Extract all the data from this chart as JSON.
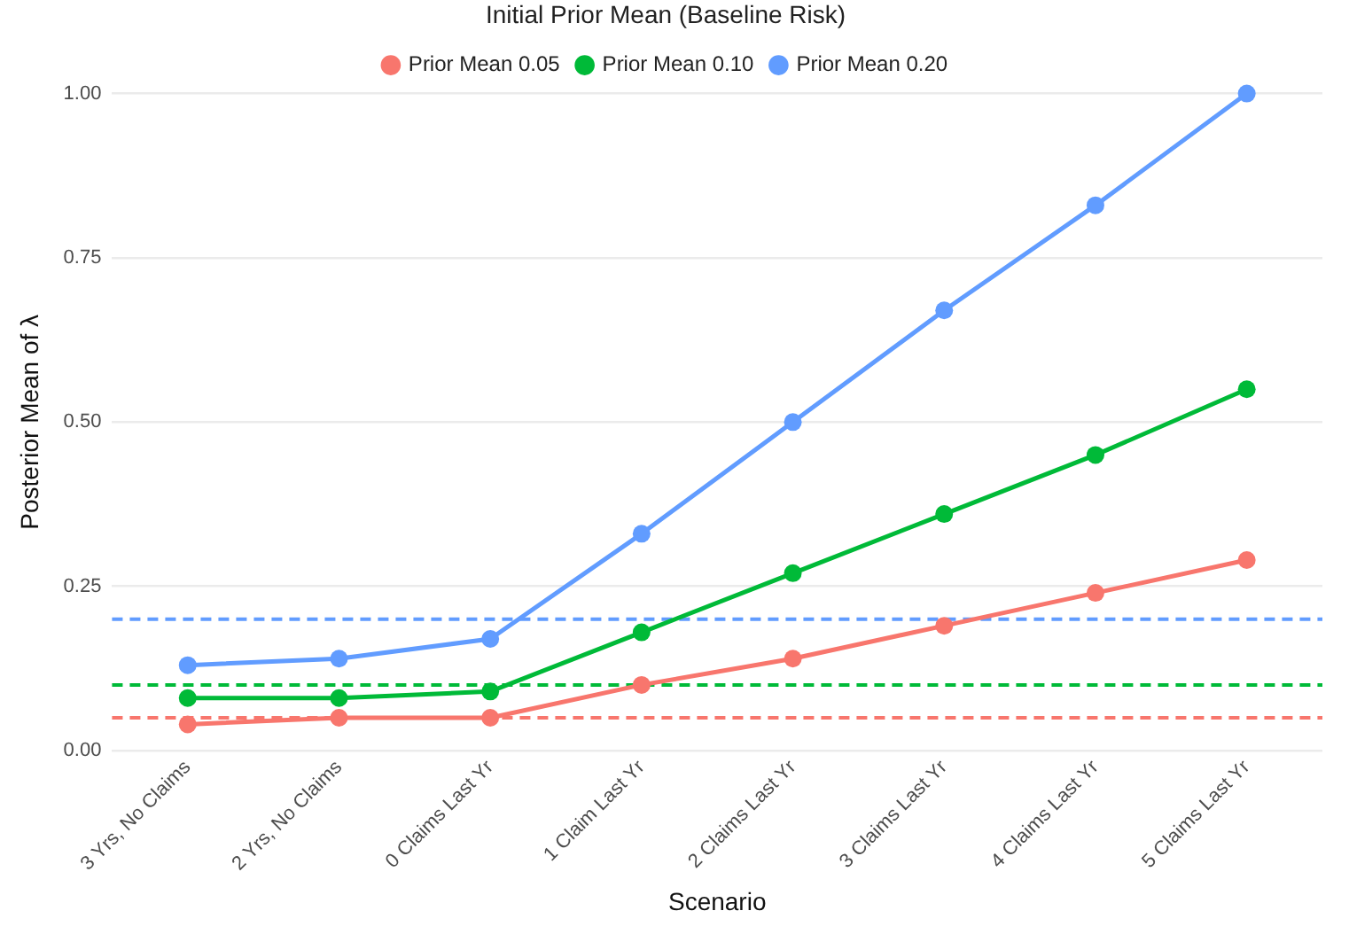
{
  "chart_data": {
    "type": "line",
    "xlabel": "Scenario",
    "ylabel": "Posterior Mean of λ",
    "legend_title": "Initial Prior Mean (Baseline Risk)",
    "categories": [
      "3 Yrs, No Claims",
      "2 Yrs, No Claims",
      "0 Claims Last Yr",
      "1 Claim Last Yr",
      "2 Claims Last Yr",
      "3 Claims Last Yr",
      "4 Claims Last Yr",
      "5 Claims Last Yr"
    ],
    "series": [
      {
        "name": "Prior Mean 0.05",
        "color": "#f8766d",
        "values": [
          0.04,
          0.05,
          0.05,
          0.1,
          0.14,
          0.19,
          0.24,
          0.29
        ]
      },
      {
        "name": "Prior Mean 0.10",
        "color": "#00ba38",
        "values": [
          0.08,
          0.08,
          0.09,
          0.18,
          0.27,
          0.36,
          0.45,
          0.55
        ]
      },
      {
        "name": "Prior Mean 0.20",
        "color": "#619cff",
        "values": [
          0.13,
          0.14,
          0.17,
          0.33,
          0.5,
          0.67,
          0.83,
          1.0
        ]
      }
    ],
    "ylim": [
      0,
      1
    ],
    "yticks": [
      {
        "value": 0,
        "label": "0.00"
      },
      {
        "value": 0.25,
        "label": "0.25"
      },
      {
        "value": 0.5,
        "label": "0.50"
      },
      {
        "value": 0.75,
        "label": "0.75"
      },
      {
        "value": 1,
        "label": "1.00"
      }
    ],
    "ref_lines": [
      {
        "axis": "y",
        "value": 0.05,
        "color": "#f8766d",
        "line_style": "dashed"
      },
      {
        "axis": "y",
        "value": 0.1,
        "color": "#00ba38",
        "line_style": "dashed"
      },
      {
        "axis": "y",
        "value": 0.2,
        "color": "#619cff",
        "line_style": "dashed"
      }
    ],
    "grid": "y",
    "legend": "top",
    "marker": "circle",
    "line_style": "solid"
  }
}
